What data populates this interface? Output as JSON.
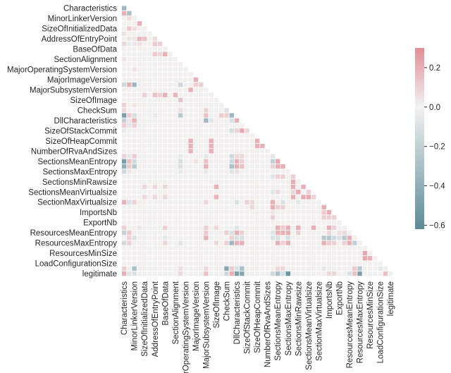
{
  "chart_data": {
    "type": "heatmap",
    "title": "",
    "xlabel": "",
    "ylabel": "",
    "matrix_size": 53,
    "mask": "upper-triangle",
    "tick_every": 2,
    "labels": [
      "Characteristics",
      "MinorLinkerVersion",
      "SizeOfInitializedData",
      "AddressOfEntryPoint",
      "BaseOfData",
      "SectionAlignment",
      "MajorOperatingSystemVersion",
      "MajorImageVersion",
      "MajorSubsystemVersion",
      "SizeOfImage",
      "CheckSum",
      "DllCharacteristics",
      "SizeOfStackCommit",
      "SizeOfHeapCommit",
      "NumberOfRvaAndSizes",
      "SectionsMeanEntropy",
      "SectionsMaxEntropy",
      "SectionsMinRawsize",
      "SectionsMeanVirtualsize",
      "SectionMaxVirtualsize",
      "ImportsNb",
      "ExportNb",
      "ResourcesMeanEntropy",
      "ResourcesMaxEntropy",
      "ResourcesMinSize",
      "LoadConfigurationSize",
      "legitimate"
    ],
    "default_value": 0.01,
    "cells_row_col_value": [
      [
        0,
        0,
        -0.35
      ],
      [
        1,
        0,
        0.2
      ],
      [
        1,
        1,
        -0.3
      ],
      [
        2,
        1,
        0.06
      ],
      [
        3,
        3,
        0.2
      ],
      [
        4,
        1,
        0.12
      ],
      [
        4,
        2,
        0.06
      ],
      [
        5,
        0,
        0.05
      ],
      [
        6,
        1,
        0.04
      ],
      [
        6,
        2,
        0.04
      ],
      [
        6,
        3,
        0.18
      ],
      [
        6,
        4,
        0.15
      ],
      [
        6,
        6,
        0.06
      ],
      [
        7,
        0,
        0.08
      ],
      [
        7,
        1,
        -0.04
      ],
      [
        7,
        2,
        0.04
      ],
      [
        7,
        3,
        0.05
      ],
      [
        7,
        6,
        0.12
      ],
      [
        7,
        7,
        0.1
      ],
      [
        9,
        6,
        0.12
      ],
      [
        9,
        7,
        0.08
      ],
      [
        9,
        8,
        0.2
      ],
      [
        10,
        0,
        0.05
      ],
      [
        12,
        2,
        0.05
      ],
      [
        14,
        14,
        0.2
      ],
      [
        15,
        0,
        -0.15
      ],
      [
        15,
        1,
        0.2
      ],
      [
        15,
        2,
        -0.35
      ],
      [
        15,
        11,
        -0.15
      ],
      [
        15,
        14,
        0.1
      ],
      [
        15,
        15,
        0.1
      ],
      [
        16,
        13,
        0.2
      ],
      [
        17,
        4,
        0.1
      ],
      [
        17,
        6,
        0.15
      ],
      [
        17,
        7,
        0.1
      ],
      [
        17,
        8,
        0.2
      ],
      [
        17,
        10,
        0.18
      ],
      [
        18,
        11,
        0.15
      ],
      [
        19,
        0,
        0.1
      ],
      [
        19,
        2,
        0.04
      ],
      [
        20,
        0,
        0.08
      ],
      [
        20,
        11,
        0.06
      ],
      [
        20,
        16,
        0.1
      ],
      [
        20,
        20,
        -0.1
      ],
      [
        21,
        0,
        -0.5
      ],
      [
        21,
        1,
        0.12
      ],
      [
        21,
        2,
        -0.12
      ],
      [
        21,
        6,
        -0.05
      ],
      [
        21,
        11,
        -0.25
      ],
      [
        21,
        16,
        0.15
      ],
      [
        21,
        19,
        0.12
      ],
      [
        21,
        20,
        0.1
      ],
      [
        21,
        21,
        -0.35
      ],
      [
        22,
        0,
        -0.2
      ],
      [
        22,
        1,
        0.05
      ],
      [
        22,
        2,
        0.2
      ],
      [
        22,
        16,
        -0.35
      ],
      [
        22,
        17,
        -0.08
      ],
      [
        22,
        21,
        -0.1
      ],
      [
        22,
        22,
        0.2
      ],
      [
        23,
        0,
        0.12
      ],
      [
        23,
        1,
        -0.08
      ],
      [
        23,
        2,
        0.1
      ],
      [
        24,
        0,
        -0.05
      ],
      [
        24,
        21,
        -0.12
      ],
      [
        24,
        22,
        0.1
      ],
      [
        24,
        23,
        0.22
      ],
      [
        24,
        24,
        0.08
      ],
      [
        26,
        13,
        0.2
      ],
      [
        26,
        17,
        0.2
      ],
      [
        26,
        26,
        0.2
      ],
      [
        27,
        13,
        0.2
      ],
      [
        27,
        17,
        0.2
      ],
      [
        27,
        26,
        0.2
      ],
      [
        27,
        27,
        0.2
      ],
      [
        28,
        13,
        0.2
      ],
      [
        28,
        17,
        0.2
      ],
      [
        29,
        0,
        0.1
      ],
      [
        29,
        1,
        -0.06
      ],
      [
        29,
        2,
        0.12
      ],
      [
        29,
        11,
        -0.05
      ],
      [
        29,
        16,
        -0.06
      ],
      [
        29,
        21,
        -0.15
      ],
      [
        29,
        22,
        0.08
      ],
      [
        29,
        23,
        0.08
      ],
      [
        29,
        29,
        -0.06
      ],
      [
        30,
        0,
        -0.5
      ],
      [
        30,
        1,
        0.15
      ],
      [
        30,
        2,
        -0.15
      ],
      [
        30,
        11,
        -0.12
      ],
      [
        30,
        14,
        0.05
      ],
      [
        30,
        16,
        0.15
      ],
      [
        30,
        21,
        -0.15
      ],
      [
        30,
        22,
        0.2
      ],
      [
        30,
        23,
        0.1
      ],
      [
        30,
        29,
        -0.2
      ],
      [
        30,
        30,
        0.22
      ],
      [
        31,
        0,
        -0.4
      ],
      [
        31,
        1,
        0.12
      ],
      [
        31,
        2,
        -0.25
      ],
      [
        31,
        11,
        -0.12
      ],
      [
        31,
        16,
        0.2
      ],
      [
        31,
        21,
        -0.3
      ],
      [
        31,
        22,
        0.2
      ],
      [
        31,
        23,
        0.15
      ],
      [
        31,
        29,
        0.1
      ],
      [
        31,
        30,
        0.2
      ],
      [
        31,
        31,
        0.2
      ],
      [
        32,
        0,
        -0.15
      ],
      [
        32,
        1,
        0.04
      ],
      [
        32,
        11,
        -0.05
      ],
      [
        32,
        16,
        -0.05
      ],
      [
        32,
        21,
        -0.08
      ],
      [
        32,
        22,
        0.06
      ],
      [
        33,
        29,
        -0.08
      ],
      [
        33,
        30,
        0.1
      ],
      [
        33,
        31,
        0.1
      ],
      [
        33,
        33,
        0.1
      ],
      [
        34,
        33,
        0.2
      ],
      [
        35,
        4,
        0.08
      ],
      [
        35,
        6,
        0.08
      ],
      [
        35,
        8,
        0.08
      ],
      [
        35,
        18,
        0.2
      ],
      [
        35,
        33,
        0.2
      ],
      [
        35,
        35,
        0.2
      ],
      [
        36,
        29,
        -0.08
      ],
      [
        36,
        30,
        0.08
      ],
      [
        36,
        33,
        0.08
      ],
      [
        36,
        34,
        0.22
      ],
      [
        36,
        36,
        0.1
      ],
      [
        37,
        4,
        0.08
      ],
      [
        37,
        6,
        0.08
      ],
      [
        37,
        8,
        0.08
      ],
      [
        37,
        18,
        0.2
      ],
      [
        37,
        33,
        0.2
      ],
      [
        37,
        35,
        0.22
      ],
      [
        37,
        36,
        0.22
      ],
      [
        37,
        37,
        0.1
      ],
      [
        38,
        0,
        0.2
      ],
      [
        38,
        1,
        -0.1
      ],
      [
        38,
        2,
        0.1
      ],
      [
        38,
        16,
        0.08
      ],
      [
        38,
        22,
        -0.1
      ],
      [
        38,
        24,
        0.1
      ],
      [
        38,
        25,
        0.08
      ],
      [
        38,
        29,
        0.2
      ],
      [
        38,
        31,
        -0.1
      ],
      [
        38,
        34,
        -0.06
      ],
      [
        39,
        25,
        0.08
      ],
      [
        39,
        29,
        0.2
      ],
      [
        39,
        30,
        0.1
      ],
      [
        39,
        31,
        0.1
      ],
      [
        39,
        39,
        0.2
      ],
      [
        40,
        29,
        0.04
      ],
      [
        40,
        39,
        0.12
      ],
      [
        40,
        40,
        0.2
      ],
      [
        41,
        29,
        0.1
      ],
      [
        41,
        39,
        0.1
      ],
      [
        41,
        40,
        0.1
      ],
      [
        41,
        41,
        0.1
      ],
      [
        43,
        0,
        0.1
      ],
      [
        43,
        3,
        0.04
      ],
      [
        43,
        8,
        0.1
      ],
      [
        43,
        16,
        0.1
      ],
      [
        43,
        18,
        0.08
      ],
      [
        43,
        22,
        -0.08
      ],
      [
        43,
        30,
        0.2
      ],
      [
        43,
        31,
        0.12
      ],
      [
        43,
        32,
        0.2
      ],
      [
        43,
        34,
        0.2
      ],
      [
        43,
        37,
        0.2
      ],
      [
        43,
        40,
        0.2
      ],
      [
        43,
        41,
        0.1
      ],
      [
        44,
        0,
        -0.18
      ],
      [
        44,
        1,
        0.12
      ],
      [
        44,
        16,
        0.12
      ],
      [
        44,
        20,
        0.1
      ],
      [
        44,
        21,
        -0.1
      ],
      [
        44,
        22,
        0.2
      ],
      [
        44,
        23,
        0.1
      ],
      [
        44,
        29,
        -0.08
      ],
      [
        44,
        30,
        0.2
      ],
      [
        44,
        31,
        0.2
      ],
      [
        44,
        32,
        0.2
      ],
      [
        44,
        34,
        0.1
      ],
      [
        44,
        40,
        0.08
      ],
      [
        44,
        42,
        0.06
      ],
      [
        44,
        43,
        0.08
      ],
      [
        45,
        1,
        0.1
      ],
      [
        45,
        2,
        -0.1
      ],
      [
        45,
        8,
        -0.06
      ],
      [
        45,
        16,
        0.2
      ],
      [
        45,
        21,
        0.1
      ],
      [
        45,
        22,
        -0.1
      ],
      [
        45,
        23,
        -0.12
      ],
      [
        45,
        29,
        -0.1
      ],
      [
        45,
        30,
        -0.1
      ],
      [
        45,
        32,
        -0.12
      ],
      [
        45,
        39,
        -0.25
      ],
      [
        45,
        40,
        -0.25
      ],
      [
        45,
        41,
        -0.15
      ],
      [
        45,
        42,
        -0.1
      ],
      [
        45,
        43,
        -0.25
      ],
      [
        45,
        44,
        0.2
      ],
      [
        46,
        0,
        -0.15
      ],
      [
        46,
        1,
        0.1
      ],
      [
        46,
        8,
        0.08
      ],
      [
        46,
        11,
        -0.08
      ],
      [
        46,
        18,
        0.08
      ],
      [
        46,
        20,
        0.1
      ],
      [
        46,
        21,
        -0.35
      ],
      [
        46,
        22,
        0.2
      ],
      [
        46,
        23,
        0.2
      ],
      [
        46,
        30,
        0.2
      ],
      [
        46,
        31,
        0.1
      ],
      [
        46,
        32,
        0.2
      ],
      [
        46,
        39,
        0.2
      ],
      [
        46,
        40,
        0.12
      ],
      [
        46,
        41,
        0.1
      ],
      [
        46,
        43,
        0.1
      ],
      [
        46,
        44,
        0.2
      ],
      [
        46,
        45,
        -0.2
      ],
      [
        48,
        47,
        0.22
      ],
      [
        49,
        47,
        0.22
      ],
      [
        49,
        48,
        0.2
      ],
      [
        51,
        0,
        0.1
      ],
      [
        51,
        2,
        -0.3
      ],
      [
        51,
        11,
        0.06
      ],
      [
        51,
        16,
        0.08
      ],
      [
        51,
        20,
        -0.45
      ],
      [
        51,
        21,
        0.12
      ],
      [
        51,
        22,
        -0.1
      ],
      [
        51,
        23,
        -0.3
      ],
      [
        51,
        30,
        0.08
      ],
      [
        51,
        31,
        0.08
      ],
      [
        51,
        39,
        -0.06
      ],
      [
        51,
        45,
        0.12
      ],
      [
        51,
        46,
        -0.25
      ],
      [
        51,
        50,
        -0.06
      ],
      [
        52,
        0,
        0.2
      ],
      [
        52,
        1,
        -0.08
      ],
      [
        52,
        2,
        -0.1
      ],
      [
        52,
        11,
        0.08
      ],
      [
        52,
        16,
        0.15
      ],
      [
        52,
        20,
        -0.15
      ],
      [
        52,
        21,
        0.2
      ],
      [
        52,
        22,
        -0.5
      ],
      [
        52,
        23,
        -0.45
      ],
      [
        52,
        29,
        -0.15
      ],
      [
        52,
        30,
        -0.3
      ],
      [
        52,
        31,
        -0.12
      ],
      [
        52,
        32,
        -0.55
      ],
      [
        52,
        40,
        0.08
      ],
      [
        52,
        41,
        0.08
      ],
      [
        52,
        44,
        -0.1
      ],
      [
        52,
        45,
        0.15
      ],
      [
        52,
        46,
        -0.5
      ],
      [
        52,
        51,
        0.15
      ]
    ],
    "colorbar": {
      "vmin": -0.62,
      "vmax": 0.3,
      "center": 0,
      "ticks": [
        0.2,
        0.0,
        -0.2,
        -0.4,
        -0.6
      ],
      "tick_labels": [
        "0.2",
        "0.0",
        "−0.2",
        "−0.4",
        "−0.6"
      ],
      "position": "right"
    },
    "colors": {
      "negative": "#5b8b99",
      "neutral": "#f2f2f2",
      "positive": "#e38d96",
      "gridline": "#ffffff",
      "text": "#262626"
    }
  }
}
